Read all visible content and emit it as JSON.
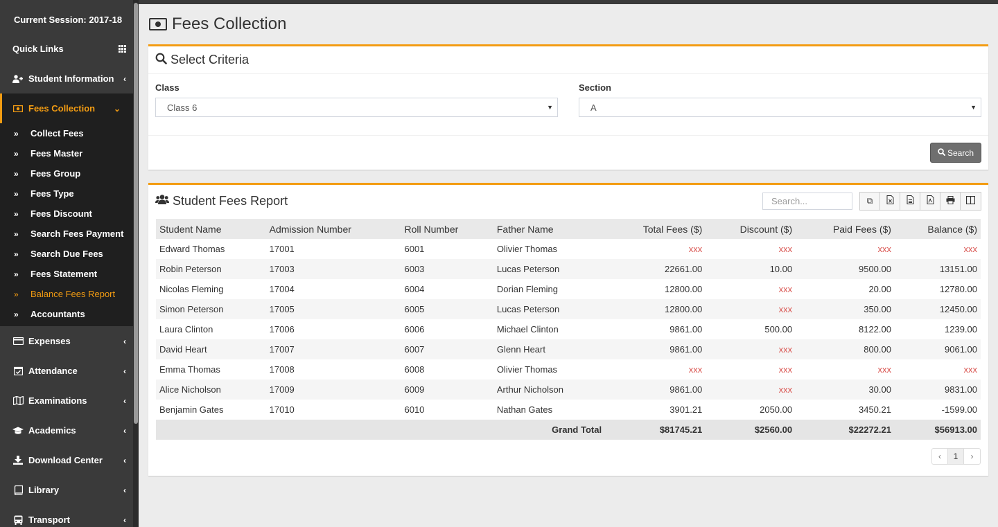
{
  "sidebar": {
    "session": "Current Session: 2017-18",
    "quick_links": "Quick Links",
    "menu_top": [
      {
        "label": "Student Information",
        "icon": "user-plus-icon"
      }
    ],
    "active_menu": {
      "label": "Fees Collection",
      "icon": "money-icon"
    },
    "submenu": [
      "Collect Fees",
      "Fees Master",
      "Fees Group",
      "Fees Type",
      "Fees Discount",
      "Search Fees Payment",
      "Search Due Fees",
      "Fees Statement",
      "Balance Fees Report",
      "Accountants"
    ],
    "current_submenu": "Balance Fees Report",
    "menu_bottom": [
      {
        "label": "Expenses",
        "icon": "credit-card-icon"
      },
      {
        "label": "Attendance",
        "icon": "calendar-check-icon"
      },
      {
        "label": "Examinations",
        "icon": "map-icon"
      },
      {
        "label": "Academics",
        "icon": "graduation-cap-icon"
      },
      {
        "label": "Download Center",
        "icon": "download-icon"
      },
      {
        "label": "Library",
        "icon": "book-icon"
      },
      {
        "label": "Transport",
        "icon": "bus-icon"
      }
    ]
  },
  "page": {
    "title": "Fees Collection"
  },
  "criteria": {
    "title": "Select Criteria",
    "class_label": "Class",
    "class_value": "Class 6",
    "section_label": "Section",
    "section_value": "A",
    "search_button": "Search"
  },
  "report": {
    "title": "Student Fees Report",
    "search_placeholder": "Search...",
    "columns": [
      "Student Name",
      "Admission Number",
      "Roll Number",
      "Father Name",
      "Total Fees ($)",
      "Discount ($)",
      "Paid Fees ($)",
      "Balance ($)"
    ],
    "rows": [
      [
        "Edward Thomas",
        "17001",
        "6001",
        "Olivier Thomas",
        "xxx",
        "xxx",
        "xxx",
        "xxx"
      ],
      [
        "Robin Peterson",
        "17003",
        "6003",
        "Lucas Peterson",
        "22661.00",
        "10.00",
        "9500.00",
        "13151.00"
      ],
      [
        "Nicolas Fleming",
        "17004",
        "6004",
        "Dorian Fleming",
        "12800.00",
        "xxx",
        "20.00",
        "12780.00"
      ],
      [
        "Simon Peterson",
        "17005",
        "6005",
        "Lucas Peterson",
        "12800.00",
        "xxx",
        "350.00",
        "12450.00"
      ],
      [
        "Laura Clinton",
        "17006",
        "6006",
        "Michael Clinton",
        "9861.00",
        "500.00",
        "8122.00",
        "1239.00"
      ],
      [
        "David Heart",
        "17007",
        "6007",
        "Glenn Heart",
        "9861.00",
        "xxx",
        "800.00",
        "9061.00"
      ],
      [
        "Emma Thomas",
        "17008",
        "6008",
        "Olivier Thomas",
        "xxx",
        "xxx",
        "xxx",
        "xxx"
      ],
      [
        "Alice Nicholson",
        "17009",
        "6009",
        "Arthur Nicholson",
        "9861.00",
        "xxx",
        "30.00",
        "9831.00"
      ],
      [
        "Benjamin Gates",
        "17010",
        "6010",
        "Nathan Gates",
        "3901.21",
        "2050.00",
        "3450.21",
        "-1599.00"
      ]
    ],
    "grand_total_label": "Grand Total",
    "grand_total": [
      "$81745.21",
      "$2560.00",
      "$22272.21",
      "$56913.00"
    ],
    "page_number": "1"
  },
  "colors": {
    "accent": "#f39c12",
    "sidebar_bg": "#3a3a3a",
    "placeholder_value": "#d9534f"
  }
}
